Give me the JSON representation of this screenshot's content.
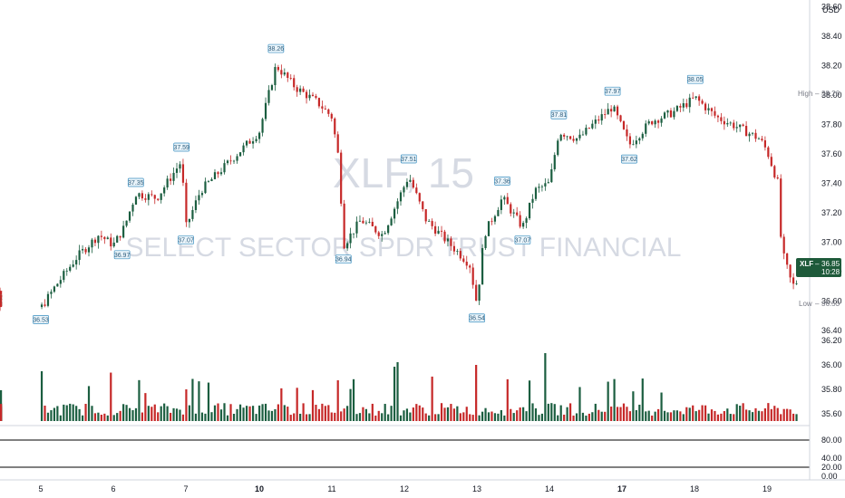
{
  "chart_data": {
    "type": "candlestick",
    "symbol": "XLF",
    "interval": "15",
    "watermark_symbol": "XLF, 15",
    "watermark_name": "SELECT SECTOR SPDR TRUST FINANCIAL",
    "currency": "USD",
    "price_axis": {
      "range": [
        36.4,
        38.62
      ],
      "ticks": [
        "36.40",
        "36.60",
        "36.80",
        "37.00",
        "37.20",
        "37.40",
        "37.60",
        "37.80",
        "38.00",
        "38.20",
        "38.40",
        "38.60"
      ],
      "top_partial_tick": "38.60"
    },
    "x_ticks": [
      {
        "label": "5",
        "bold": false
      },
      {
        "label": "6",
        "bold": false
      },
      {
        "label": "7",
        "bold": false
      },
      {
        "label": "10",
        "bold": true
      },
      {
        "label": "11",
        "bold": false
      },
      {
        "label": "12",
        "bold": false
      },
      {
        "label": "13",
        "bold": false
      },
      {
        "label": "14",
        "bold": false
      },
      {
        "label": "17",
        "bold": true
      },
      {
        "label": "18",
        "bold": false
      },
      {
        "label": "19",
        "bold": false
      }
    ],
    "high_label": {
      "text": "High",
      "value": "38.26"
    },
    "low_label": {
      "text": "Low",
      "value": "36.53"
    },
    "last_price": {
      "symbol": "XLF",
      "value": "36.85",
      "countdown": "10:28",
      "color": "#1e5a3a"
    },
    "price_annotations": [
      {
        "day": 0.0,
        "value": "36.53",
        "side": "low"
      },
      {
        "day": 1.31,
        "value": "37.35",
        "side": "high"
      },
      {
        "day": 1.12,
        "value": "36.97",
        "side": "low"
      },
      {
        "day": 1.94,
        "value": "37.59",
        "side": "high"
      },
      {
        "day": 2.0,
        "value": "37.07",
        "side": "low"
      },
      {
        "day": 3.23,
        "value": "38.26",
        "side": "high"
      },
      {
        "day": 4.16,
        "value": "36.94",
        "side": "low"
      },
      {
        "day": 5.06,
        "value": "37.51",
        "side": "high"
      },
      {
        "day": 6.35,
        "value": "37.36",
        "side": "high"
      },
      {
        "day": 6.0,
        "value": "36.54",
        "side": "low"
      },
      {
        "day": 6.63,
        "value": "37.07",
        "side": "low"
      },
      {
        "day": 7.13,
        "value": "37.81",
        "side": "high"
      },
      {
        "day": 7.87,
        "value": "37.97",
        "side": "high"
      },
      {
        "day": 8.1,
        "value": "37.62",
        "side": "low"
      },
      {
        "day": 9.01,
        "value": "38.05",
        "side": "high"
      }
    ],
    "oscillator": {
      "range": [
        0,
        100
      ],
      "ticks": [
        "0.00",
        "20.00",
        "40.00",
        "80.00"
      ],
      "levels": [
        20,
        80
      ]
    },
    "volume_axis": {
      "ticks": [
        "35.60",
        "35.80",
        "36.00",
        "36.20"
      ]
    },
    "colors": {
      "up": "#1b5e40",
      "down": "#c62828",
      "bollinger": "#3b8fc0",
      "bollinger_fill": "#e4f1f7",
      "ema_red": "#b23b3b",
      "ema_orange": "#ef8a1c",
      "sma_blue": "#2c94d0",
      "sma_black": "#000000",
      "stoch_k": "#c62828",
      "stoch_d": "#ef8a1c",
      "volume_ma": "#ef8a1c",
      "high_low_label": "#9ca3af"
    }
  }
}
